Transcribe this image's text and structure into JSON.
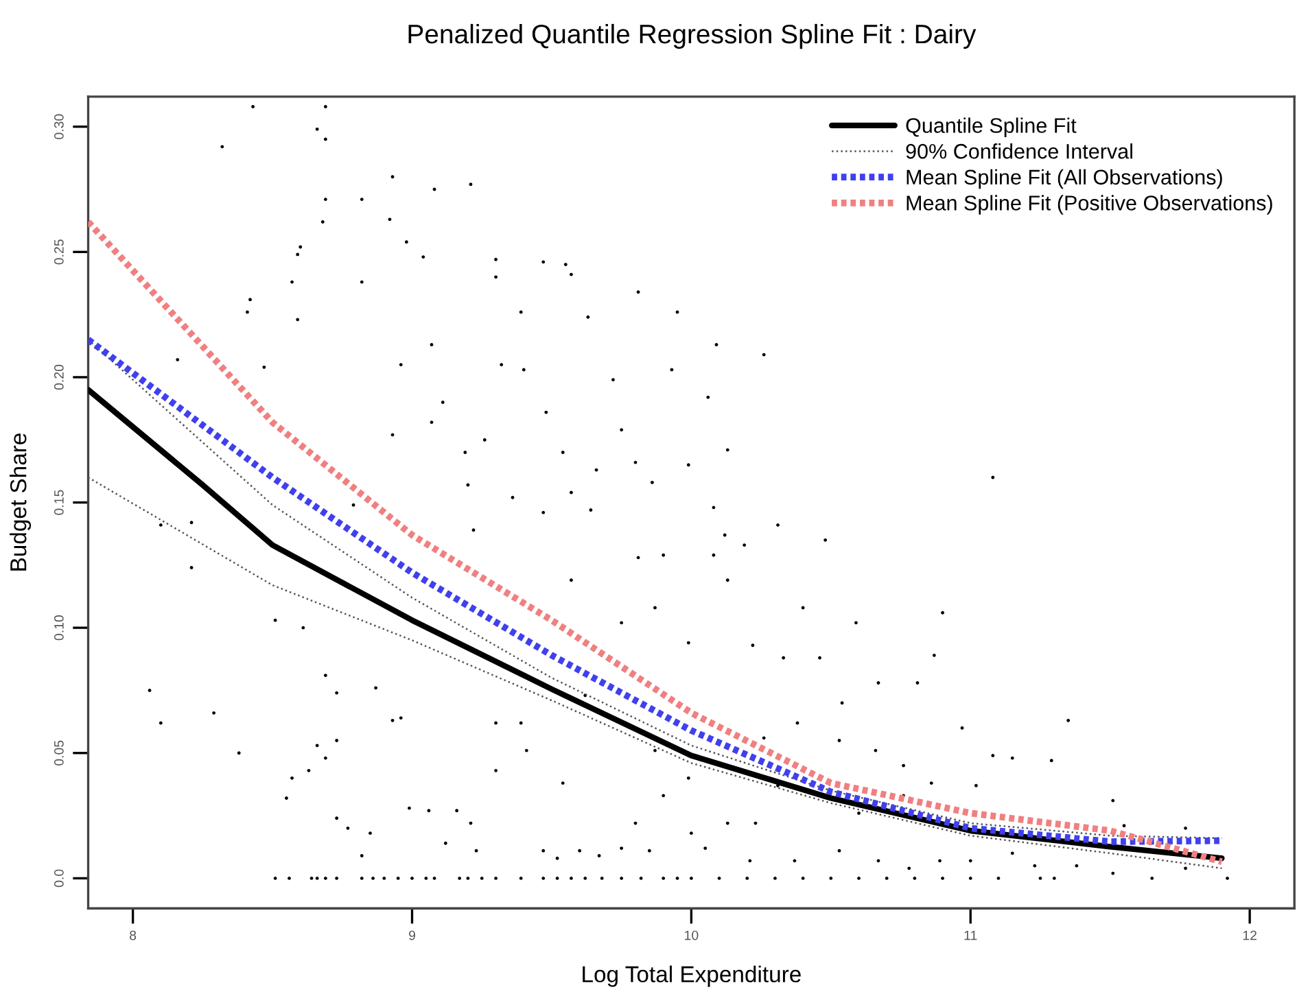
{
  "chart_data": {
    "type": "line",
    "title": "Penalized Quantile Regression Spline Fit : Dairy",
    "xlabel": "Log Total Expenditure",
    "ylabel": "Budget Share",
    "xlim": [
      7.84,
      12.16
    ],
    "xticks": [
      8,
      9,
      10,
      11,
      12
    ],
    "ylim": [
      -0.012,
      0.312
    ],
    "yticks": [
      {
        "value": 0,
        "label": "0.0"
      },
      0.05,
      {
        "value": 0.1,
        "label": "0.10"
      },
      0.15,
      {
        "value": 0.2,
        "label": "0.20"
      },
      0.25,
      {
        "value": 0.3,
        "label": "0.30"
      }
    ],
    "grid": false,
    "legend": "top right",
    "series": [
      {
        "type": "scatter",
        "color": "#000000",
        "marker": "circle",
        "x": [
          8.43,
          8.69,
          8.32,
          8.66,
          8.69,
          8.93,
          9.21,
          9.08,
          8.69,
          8.82,
          8.68,
          8.92,
          8.98,
          8.59,
          8.6,
          9.04,
          9.3,
          9.47,
          9.55,
          9.57,
          9.3,
          8.57,
          8.82,
          8.41,
          8.42,
          8.59,
          9.39,
          9.81,
          9.63,
          9.07,
          9.4,
          9.32,
          8.96,
          8.16,
          8.47,
          9.72,
          9.11,
          9.48,
          9.07,
          9.75,
          8.93,
          9.19,
          9.26,
          9.54,
          9.8,
          9.66,
          9.2,
          9.86,
          9.57,
          9.36,
          8.79,
          9.47,
          9.64,
          8.1,
          8.21,
          9.95,
          10.09,
          10.26,
          9.93,
          10.06,
          11.08,
          10.13,
          9.99,
          10.08,
          10.31,
          10.48,
          8.21,
          8.06,
          8.1,
          8.29,
          8.38,
          8.51,
          8.61,
          8.55,
          8.57,
          8.63,
          8.66,
          8.69,
          8.69,
          8.73,
          8.73,
          8.73,
          8.77,
          8.82,
          8.85,
          8.87,
          8.93,
          8.96,
          8.99,
          9.06,
          9.12,
          9.16,
          9.23,
          9.21,
          9.3,
          9.3,
          9.39,
          9.41,
          9.47,
          9.52,
          9.54,
          9.6,
          9.67,
          9.75,
          9.8,
          9.85,
          9.62,
          9.75,
          9.81,
          9.57,
          9.22,
          10.12,
          10.19,
          9.9,
          10.08,
          10.13,
          10.9,
          10.59,
          10.4,
          10.87,
          10.67,
          10.81,
          11.35,
          10.97,
          11.29,
          11.15,
          11.08,
          11.51,
          11.77,
          11.55,
          11.51,
          11.65,
          11.92,
          11.77,
          11.38,
          11.23,
          11.15,
          11.0,
          10.89,
          10.78,
          10.67,
          10.53,
          10.37,
          10.21,
          10.05,
          10.31,
          10.6,
          10.76,
          9.9,
          10.0,
          10.13,
          10.23,
          9.87,
          9.99,
          10.26,
          10.38,
          10.53,
          10.66,
          10.76,
          10.86,
          11.02,
          10.54,
          10.33,
          10.46,
          10.22,
          9.87,
          9.99,
          8.51,
          8.56,
          8.64,
          8.66,
          8.69,
          8.73,
          8.82,
          8.86,
          8.9,
          8.95,
          9.0,
          9.05,
          9.08,
          9.17,
          9.2,
          9.25,
          9.3,
          9.39,
          9.47,
          9.52,
          9.57,
          9.62,
          9.68,
          9.75,
          9.82,
          9.9,
          9.95,
          10.0,
          10.1,
          10.2,
          10.3,
          10.4,
          10.5,
          10.6,
          10.7,
          10.8,
          10.9,
          11.0,
          11.1,
          11.25,
          11.3
        ],
        "values": [
          0.308,
          0.308,
          0.292,
          0.299,
          0.295,
          0.28,
          0.277,
          0.275,
          0.271,
          0.271,
          0.262,
          0.263,
          0.254,
          0.249,
          0.252,
          0.248,
          0.247,
          0.246,
          0.245,
          0.241,
          0.24,
          0.238,
          0.238,
          0.226,
          0.231,
          0.223,
          0.226,
          0.234,
          0.224,
          0.213,
          0.203,
          0.205,
          0.205,
          0.207,
          0.204,
          0.199,
          0.19,
          0.186,
          0.182,
          0.179,
          0.177,
          0.17,
          0.175,
          0.17,
          0.166,
          0.163,
          0.157,
          0.158,
          0.154,
          0.152,
          0.149,
          0.146,
          0.147,
          0.141,
          0.142,
          0.226,
          0.213,
          0.209,
          0.203,
          0.192,
          0.16,
          0.171,
          0.165,
          0.148,
          0.141,
          0.135,
          0.124,
          0.075,
          0.062,
          0.066,
          0.05,
          0.103,
          0.1,
          0.032,
          0.04,
          0.043,
          0.053,
          0.048,
          0.081,
          0.074,
          0.055,
          0.024,
          0.02,
          0.009,
          0.018,
          0.076,
          0.063,
          0.064,
          0.028,
          0.027,
          0.014,
          0.027,
          0.011,
          0.022,
          0.062,
          0.043,
          0.062,
          0.051,
          0.011,
          0.008,
          0.038,
          0.011,
          0.009,
          0.012,
          0.022,
          0.011,
          0.073,
          0.102,
          0.128,
          0.119,
          0.139,
          0.137,
          0.133,
          0.129,
          0.129,
          0.119,
          0.106,
          0.102,
          0.108,
          0.089,
          0.078,
          0.078,
          0.063,
          0.06,
          0.047,
          0.048,
          0.049,
          0.031,
          0.02,
          0.021,
          0.002,
          0.0,
          0.0,
          0.004,
          0.005,
          0.005,
          0.01,
          0.007,
          0.007,
          0.004,
          0.007,
          0.011,
          0.007,
          0.007,
          0.012,
          0.037,
          0.026,
          0.033,
          0.033,
          0.018,
          0.022,
          0.022,
          0.051,
          0.04,
          0.056,
          0.062,
          0.055,
          0.051,
          0.045,
          0.038,
          0.037,
          0.07,
          0.088,
          0.088,
          0.093,
          0.108,
          0.094,
          0,
          0,
          0,
          0,
          0,
          0,
          0,
          0,
          0,
          0,
          0,
          0,
          0,
          0,
          0,
          0,
          0,
          0,
          0,
          0,
          0,
          0,
          0,
          0,
          0,
          0,
          0,
          0,
          0,
          0,
          0,
          0,
          0,
          0,
          0,
          0,
          0,
          0,
          0,
          0,
          0
        ]
      },
      {
        "type": "line",
        "name": "Quantile Spline Fit",
        "color": "#000000",
        "line_style": "solid",
        "x": [
          7.84,
          8.25,
          8.5,
          9.0,
          9.5,
          10.0,
          10.5,
          11.0,
          11.5,
          11.9
        ],
        "values": [
          0.195,
          0.157,
          0.133,
          0.103,
          0.0755,
          0.049,
          0.032,
          0.019,
          0.0126,
          0.008
        ]
      },
      {
        "type": "line",
        "name": "90% Confidence Interval",
        "color": "#555555",
        "line_style": "dotted",
        "x": [
          7.84,
          8.5,
          9.0,
          9.5,
          10.0,
          10.5,
          11.0,
          11.5,
          11.9
        ],
        "values": [
          0.215,
          0.149,
          0.112,
          0.08,
          0.053,
          0.035,
          0.022,
          0.017,
          0.016
        ]
      },
      {
        "type": "line",
        "color": "#555555",
        "line_style": "dotted",
        "x": [
          7.84,
          8.5,
          9.0,
          9.5,
          10.0,
          10.5,
          11.0,
          11.5,
          11.9
        ],
        "values": [
          0.16,
          0.117,
          0.095,
          0.071,
          0.046,
          0.03,
          0.017,
          0.01,
          0.004
        ]
      },
      {
        "type": "line",
        "name": "Mean Spline Fit (All Observations)",
        "color": "#4040ee",
        "line_style": "dashed",
        "x": [
          7.84,
          8.5,
          9.0,
          9.5,
          10.0,
          10.5,
          11.0,
          11.5,
          11.9
        ],
        "values": [
          0.215,
          0.16,
          0.122,
          0.089,
          0.059,
          0.0345,
          0.02,
          0.0146,
          0.015
        ]
      },
      {
        "type": "line",
        "name": "Mean Spline Fit (Positive Observations)",
        "color": "#f08080",
        "line_style": "dashed",
        "x": [
          7.84,
          8.5,
          9.0,
          9.5,
          10.0,
          10.5,
          11.0,
          11.5,
          11.9
        ],
        "values": [
          0.262,
          0.182,
          0.137,
          0.103,
          0.066,
          0.038,
          0.026,
          0.019,
          0.0066
        ]
      }
    ]
  }
}
